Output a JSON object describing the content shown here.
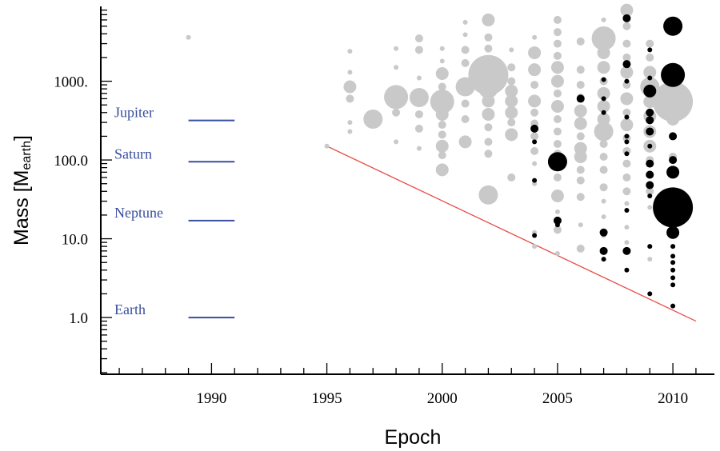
{
  "chart_data": {
    "type": "scatter",
    "title": "",
    "xlabel": "Epoch",
    "ylabel": {
      "main": "Mass [M",
      "sub": "earth",
      "close": "]"
    },
    "xlim": [
      1985.2,
      2011.8
    ],
    "ylim_log10": [
      -0.72,
      3.95
    ],
    "y_scale": "log",
    "grid": false,
    "legend": "none",
    "x_ticks": [
      {
        "value": 1990,
        "label": "1990"
      },
      {
        "value": 1995,
        "label": "1995"
      },
      {
        "value": 2000,
        "label": "2000"
      },
      {
        "value": 2005,
        "label": "2005"
      },
      {
        "value": 2010,
        "label": "2010"
      }
    ],
    "y_ticks": [
      {
        "value": 1,
        "label": "1.0"
      },
      {
        "value": 10,
        "label": "10.0"
      },
      {
        "value": 100,
        "label": "100.0"
      },
      {
        "value": 1000,
        "label": "1000."
      }
    ],
    "colors": {
      "light": "#c9c9c9",
      "dark": "#000000",
      "reference": "#3a4f9e",
      "trend": "#e8504a",
      "axis": "#000000"
    },
    "reference_lines": [
      {
        "name": "Jupiter",
        "mass": 318,
        "x_start": 1989,
        "x_end": 1991
      },
      {
        "name": "Saturn",
        "mass": 95,
        "x_start": 1989,
        "x_end": 1991
      },
      {
        "name": "Neptune",
        "mass": 17,
        "x_start": 1989,
        "x_end": 1991
      },
      {
        "name": "Earth",
        "mass": 1,
        "x_start": 1989,
        "x_end": 1991
      }
    ],
    "trend_line": {
      "from": [
        1995,
        150
      ],
      "to": [
        2011,
        0.9
      ]
    },
    "series": [
      {
        "color": "light",
        "points": [
          [
            1989,
            3600,
            1
          ],
          [
            1995,
            150,
            1
          ],
          [
            1996,
            2400,
            1
          ],
          [
            1996,
            1300,
            1
          ],
          [
            1996,
            850,
            3
          ],
          [
            1996,
            600,
            2
          ],
          [
            1996,
            300,
            1
          ],
          [
            1996,
            230,
            1
          ],
          [
            1997,
            330,
            4
          ],
          [
            1998,
            2600,
            1
          ],
          [
            1998,
            1500,
            1
          ],
          [
            1998,
            630,
            5
          ],
          [
            1998,
            400,
            2
          ],
          [
            1998,
            170,
            1
          ],
          [
            1999,
            3500,
            2
          ],
          [
            1999,
            2500,
            2
          ],
          [
            1999,
            1100,
            1
          ],
          [
            1999,
            620,
            4
          ],
          [
            1999,
            380,
            2
          ],
          [
            1999,
            250,
            2
          ],
          [
            1999,
            140,
            1
          ],
          [
            2000,
            2600,
            1
          ],
          [
            2000,
            1800,
            1
          ],
          [
            2000,
            1250,
            3
          ],
          [
            2000,
            850,
            2
          ],
          [
            2000,
            550,
            5
          ],
          [
            2000,
            380,
            3
          ],
          [
            2000,
            280,
            2
          ],
          [
            2000,
            210,
            2
          ],
          [
            2000,
            150,
            3
          ],
          [
            2000,
            115,
            2
          ],
          [
            2000,
            75,
            3
          ],
          [
            2001,
            5600,
            1
          ],
          [
            2001,
            3900,
            1
          ],
          [
            2001,
            2500,
            2
          ],
          [
            2001,
            1700,
            2
          ],
          [
            2001,
            850,
            4
          ],
          [
            2001,
            520,
            2
          ],
          [
            2001,
            330,
            2
          ],
          [
            2001,
            170,
            3
          ],
          [
            2002,
            6000,
            3
          ],
          [
            2002,
            3600,
            2
          ],
          [
            2002,
            2600,
            2
          ],
          [
            2002,
            1800,
            2
          ],
          [
            2002,
            1200,
            6
          ],
          [
            2002,
            800,
            4
          ],
          [
            2002,
            560,
            3
          ],
          [
            2002,
            380,
            3
          ],
          [
            2002,
            260,
            2
          ],
          [
            2002,
            170,
            2
          ],
          [
            2002,
            120,
            2
          ],
          [
            2002,
            36,
            4
          ],
          [
            2003,
            2500,
            1
          ],
          [
            2003,
            1500,
            2
          ],
          [
            2003,
            1000,
            2
          ],
          [
            2003,
            750,
            3
          ],
          [
            2003,
            560,
            3
          ],
          [
            2003,
            400,
            3
          ],
          [
            2003,
            300,
            2
          ],
          [
            2003,
            210,
            3
          ],
          [
            2003,
            60,
            2
          ],
          [
            2004,
            3600,
            1
          ],
          [
            2004,
            2300,
            3
          ],
          [
            2004,
            1400,
            3
          ],
          [
            2004,
            900,
            2
          ],
          [
            2004,
            560,
            3
          ],
          [
            2004,
            400,
            2
          ],
          [
            2004,
            290,
            2
          ],
          [
            2004,
            200,
            2
          ],
          [
            2004,
            130,
            2
          ],
          [
            2004,
            90,
            1
          ],
          [
            2004,
            50,
            1
          ],
          [
            2004,
            12,
            1
          ],
          [
            2004,
            8,
            1
          ],
          [
            2005,
            6000,
            2
          ],
          [
            2005,
            4200,
            2
          ],
          [
            2005,
            3000,
            2
          ],
          [
            2005,
            2100,
            2
          ],
          [
            2005,
            1500,
            3
          ],
          [
            2005,
            1000,
            3
          ],
          [
            2005,
            700,
            2
          ],
          [
            2005,
            480,
            3
          ],
          [
            2005,
            330,
            2
          ],
          [
            2005,
            230,
            2
          ],
          [
            2005,
            160,
            2
          ],
          [
            2005,
            120,
            2
          ],
          [
            2005,
            60,
            2
          ],
          [
            2005,
            35,
            3
          ],
          [
            2005,
            22,
            1
          ],
          [
            2005,
            13,
            2
          ],
          [
            2005,
            6.5,
            1
          ],
          [
            2006,
            3200,
            2
          ],
          [
            2006,
            1400,
            2
          ],
          [
            2006,
            900,
            2
          ],
          [
            2006,
            620,
            2
          ],
          [
            2006,
            420,
            3
          ],
          [
            2006,
            290,
            3
          ],
          [
            2006,
            200,
            2
          ],
          [
            2006,
            140,
            3
          ],
          [
            2006,
            110,
            3
          ],
          [
            2006,
            75,
            2
          ],
          [
            2006,
            55,
            2
          ],
          [
            2006,
            34,
            2
          ],
          [
            2006,
            15,
            1
          ],
          [
            2006,
            7.5,
            2
          ],
          [
            2007,
            6000,
            1
          ],
          [
            2007,
            3500,
            5
          ],
          [
            2007,
            2300,
            3
          ],
          [
            2007,
            1500,
            3
          ],
          [
            2007,
            1000,
            2
          ],
          [
            2007,
            700,
            3
          ],
          [
            2007,
            480,
            3
          ],
          [
            2007,
            330,
            3
          ],
          [
            2007,
            230,
            4
          ],
          [
            2007,
            160,
            2
          ],
          [
            2007,
            110,
            2
          ],
          [
            2007,
            75,
            2
          ],
          [
            2007,
            45,
            2
          ],
          [
            2007,
            30,
            1
          ],
          [
            2007,
            19,
            1
          ],
          [
            2007,
            11,
            1
          ],
          [
            2008,
            8000,
            3
          ],
          [
            2008,
            5000,
            2
          ],
          [
            2008,
            3000,
            2
          ],
          [
            2008,
            2000,
            2
          ],
          [
            2008,
            1300,
            3
          ],
          [
            2008,
            900,
            2
          ],
          [
            2008,
            600,
            3
          ],
          [
            2008,
            400,
            2
          ],
          [
            2008,
            280,
            3
          ],
          [
            2008,
            190,
            2
          ],
          [
            2008,
            130,
            2
          ],
          [
            2008,
            90,
            2
          ],
          [
            2008,
            60,
            2
          ],
          [
            2008,
            40,
            2
          ],
          [
            2008,
            28,
            1
          ],
          [
            2008,
            14,
            1
          ],
          [
            2008,
            9,
            1
          ],
          [
            2009,
            3000,
            2
          ],
          [
            2009,
            2000,
            2
          ],
          [
            2009,
            1300,
            3
          ],
          [
            2009,
            850,
            4
          ],
          [
            2009,
            550,
            3
          ],
          [
            2009,
            360,
            3
          ],
          [
            2009,
            230,
            3
          ],
          [
            2009,
            150,
            3
          ],
          [
            2009,
            100,
            2
          ],
          [
            2009,
            65,
            2
          ],
          [
            2009,
            40,
            2
          ],
          [
            2009,
            25,
            1
          ],
          [
            2009,
            8,
            1
          ],
          [
            2009,
            5.5,
            1
          ],
          [
            2010,
            700,
            2
          ],
          [
            2010,
            550,
            6
          ],
          [
            2010,
            330,
            3
          ],
          [
            2010,
            200,
            2
          ],
          [
            2010,
            110,
            2
          ],
          [
            2010,
            70,
            2
          ],
          [
            2010,
            40,
            2
          ],
          [
            2010,
            8,
            1
          ]
        ]
      },
      {
        "color": "dark",
        "points": [
          [
            2004,
            250,
            2
          ],
          [
            2004,
            170,
            1
          ],
          [
            2004,
            55,
            1
          ],
          [
            2004,
            11,
            1
          ],
          [
            2005,
            95,
            4
          ],
          [
            2005,
            17,
            2
          ],
          [
            2005,
            15,
            1
          ],
          [
            2006,
            600,
            2
          ],
          [
            2007,
            1050,
            1
          ],
          [
            2007,
            600,
            1
          ],
          [
            2007,
            400,
            1
          ],
          [
            2007,
            12,
            2
          ],
          [
            2007,
            7,
            2
          ],
          [
            2007,
            5.5,
            1
          ],
          [
            2008,
            6300,
            2
          ],
          [
            2008,
            1650,
            2
          ],
          [
            2008,
            1000,
            1
          ],
          [
            2008,
            350,
            1
          ],
          [
            2008,
            200,
            1
          ],
          [
            2008,
            170,
            1
          ],
          [
            2008,
            120,
            1
          ],
          [
            2008,
            23,
            1
          ],
          [
            2008,
            7,
            2
          ],
          [
            2008,
            4,
            1
          ],
          [
            2009,
            2500,
            1
          ],
          [
            2009,
            1100,
            1
          ],
          [
            2009,
            750,
            3
          ],
          [
            2009,
            400,
            2
          ],
          [
            2009,
            320,
            2
          ],
          [
            2009,
            230,
            2
          ],
          [
            2009,
            150,
            1
          ],
          [
            2009,
            90,
            2
          ],
          [
            2009,
            65,
            2
          ],
          [
            2009,
            48,
            2
          ],
          [
            2009,
            35,
            1
          ],
          [
            2009,
            8,
            1
          ],
          [
            2009,
            2,
            1
          ],
          [
            2010,
            5000,
            4
          ],
          [
            2010,
            1200,
            5
          ],
          [
            2010,
            200,
            2
          ],
          [
            2010,
            100,
            2
          ],
          [
            2010,
            70,
            3
          ],
          [
            2010,
            35,
            2
          ],
          [
            2010,
            25,
            6
          ],
          [
            2010,
            18,
            2
          ],
          [
            2010,
            12,
            3
          ],
          [
            2010,
            8,
            1
          ],
          [
            2010,
            6,
            1
          ],
          [
            2010,
            5,
            1
          ],
          [
            2010,
            4,
            1
          ],
          [
            2010,
            3.2,
            1
          ],
          [
            2010,
            2.6,
            1
          ],
          [
            2010,
            1.4,
            1
          ]
        ]
      }
    ]
  }
}
